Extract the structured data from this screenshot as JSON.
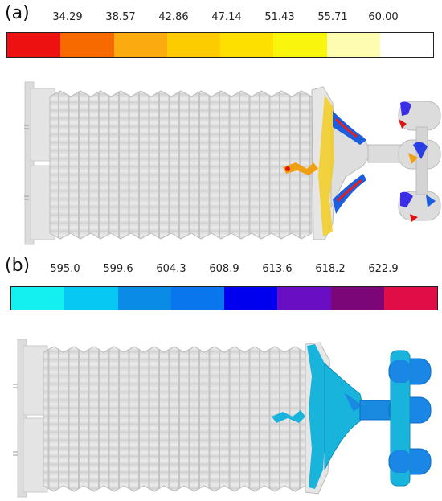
{
  "panels": [
    {
      "label": "(a)",
      "ticks": [
        "34.29",
        "38.57",
        "42.86",
        "47.14",
        "51.43",
        "55.71",
        "60.00"
      ],
      "colors": [
        "#ee1111",
        "#f76a00",
        "#fbaa10",
        "#fdcc00",
        "#fde000",
        "#faf50c",
        "#fdfcb0",
        "#ffffff"
      ]
    },
    {
      "label": "(b)",
      "ticks": [
        "595.0",
        "599.6",
        "604.3",
        "608.9",
        "613.6",
        "618.2",
        "622.9"
      ],
      "colors": [
        "#14f0f0",
        "#06c8f2",
        "#0a8ce6",
        "#0a76ee",
        "#0000ee",
        "#6a0ec4",
        "#7a0678",
        "#e00d46"
      ]
    }
  ]
}
